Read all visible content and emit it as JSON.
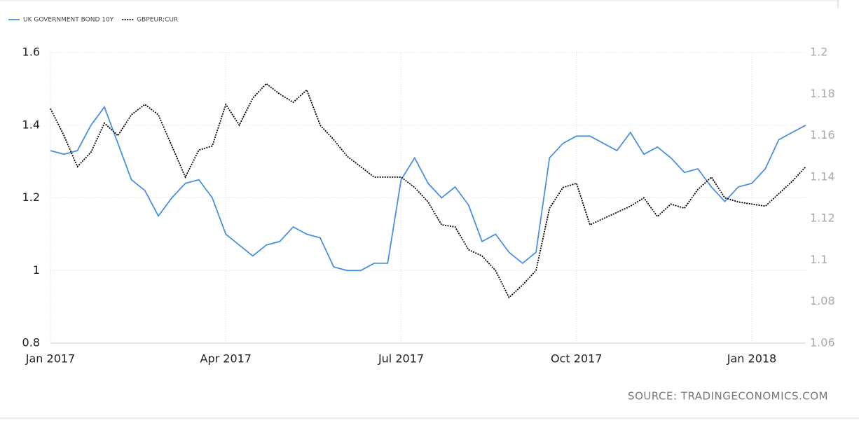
{
  "chart_data": {
    "type": "line",
    "source": "SOURCE: TRADINGECONOMICS.COM",
    "categories": [
      "Jan 2017",
      null,
      null,
      null,
      null,
      null,
      null,
      null,
      null,
      null,
      null,
      null,
      null,
      "Apr 2017",
      null,
      null,
      null,
      null,
      null,
      null,
      null,
      null,
      null,
      null,
      null,
      null,
      "Jul 2017",
      null,
      null,
      null,
      null,
      null,
      null,
      null,
      null,
      null,
      null,
      null,
      null,
      "Oct 2017",
      null,
      null,
      null,
      null,
      null,
      null,
      null,
      null,
      null,
      null,
      null,
      null,
      "Jan 2018",
      null,
      null,
      null,
      null
    ],
    "series": [
      {
        "name": "UK GOVERNMENT BOND 10Y",
        "color": "#4a90e2",
        "line_style": "solid",
        "values": [
          1.33,
          1.32,
          1.33,
          1.4,
          1.45,
          1.35,
          1.25,
          1.22,
          1.15,
          1.2,
          1.24,
          1.25,
          1.2,
          1.1,
          1.07,
          1.04,
          1.07,
          1.08,
          1.12,
          1.1,
          1.09,
          1.01,
          1.0,
          1.0,
          1.02,
          1.02,
          1.25,
          1.31,
          1.24,
          1.2,
          1.23,
          1.18,
          1.08,
          1.1,
          1.05,
          1.02,
          1.05,
          1.31,
          1.35,
          1.37,
          1.37,
          1.35,
          1.33,
          1.38,
          1.32,
          1.34,
          1.31,
          1.27,
          1.28,
          1.23,
          1.19,
          1.23,
          1.24,
          1.28,
          1.36,
          1.38,
          1.4
        ]
      },
      {
        "name": "GBPEUR:CUR",
        "color": "#000000",
        "line_style": "dotted",
        "axis": "y2",
        "values": [
          1.173,
          1.16,
          1.145,
          1.152,
          1.166,
          1.16,
          1.17,
          1.175,
          1.17,
          1.155,
          1.14,
          1.153,
          1.155,
          1.175,
          1.165,
          1.178,
          1.185,
          1.18,
          1.176,
          1.182,
          1.165,
          1.158,
          1.15,
          1.145,
          1.14,
          1.14,
          1.14,
          1.135,
          1.128,
          1.117,
          1.116,
          1.105,
          1.102,
          1.095,
          1.082,
          1.088,
          1.095,
          1.125,
          1.135,
          1.137,
          1.117,
          1.12,
          1.123,
          1.126,
          1.13,
          1.121,
          1.127,
          1.125,
          1.134,
          1.14,
          1.13,
          1.128,
          1.127,
          1.126,
          1.132,
          1.138,
          1.145
        ]
      }
    ],
    "ylim": [
      0.8,
      1.6
    ],
    "yticks": [
      0.8,
      1,
      1.2,
      1.4,
      1.6
    ],
    "y2lim": [
      1.06,
      1.2
    ],
    "y2ticks": [
      1.06,
      1.08,
      1.1,
      1.12,
      1.14,
      1.16,
      1.18,
      1.2
    ],
    "grid": true,
    "legend": "top-left"
  }
}
